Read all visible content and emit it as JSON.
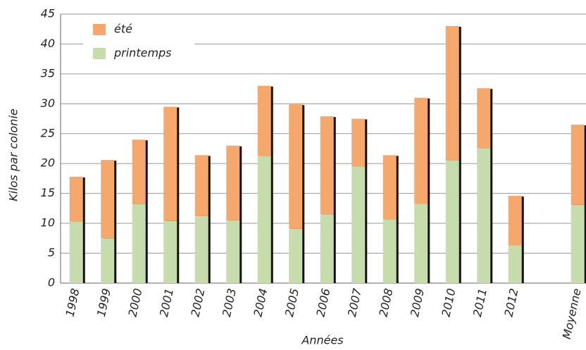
{
  "chart_data": {
    "type": "stacked_bar",
    "x_label": "Années",
    "y_label": "Kilos par colonie",
    "categories": [
      "1998",
      "1999",
      "2000",
      "2001",
      "2002",
      "2003",
      "2004",
      "2005",
      "2006",
      "2007",
      "2008",
      "2009",
      "2010",
      "2011",
      "2012",
      null,
      "Moyenne"
    ],
    "series": [
      {
        "name": "printemps",
        "color": "#c6dcac",
        "values": [
          10.3,
          7.5,
          13.2,
          10.4,
          11.2,
          10.5,
          21.3,
          9.1,
          11.5,
          19.5,
          10.7,
          13.3,
          20.5,
          22.6,
          6.3,
          null,
          13.1
        ]
      },
      {
        "name": "été",
        "color": "#f5a76c",
        "values": [
          7.5,
          13.1,
          10.8,
          19.1,
          10.2,
          12.5,
          11.7,
          20.8,
          16.4,
          8.0,
          10.7,
          17.7,
          22.5,
          10.0,
          8.3,
          null,
          13.4
        ]
      }
    ],
    "ylim": [
      0,
      45
    ],
    "yticks": [
      0,
      5,
      10,
      15,
      20,
      25,
      30,
      35,
      40,
      45
    ],
    "grid": true,
    "legend": "upper left"
  }
}
